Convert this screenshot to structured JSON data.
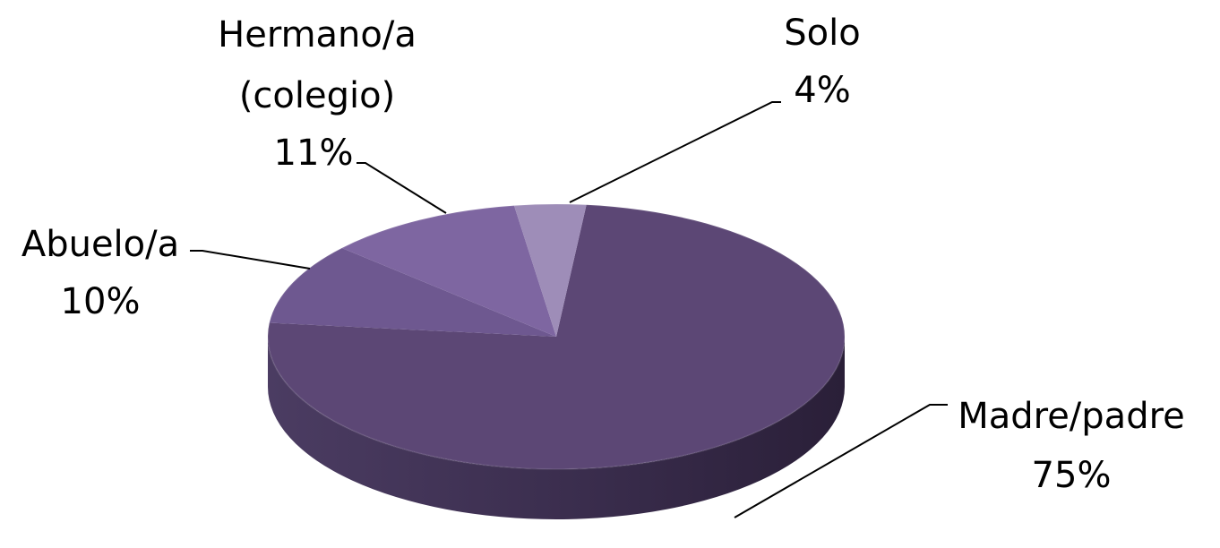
{
  "chart_data": {
    "type": "pie",
    "style": "3d",
    "title": "",
    "slices": [
      {
        "name": "Madre/padre",
        "value": 75,
        "label": "75%",
        "color": "#5c4775"
      },
      {
        "name": "Abuelo/a",
        "value": 10,
        "label": "10%",
        "color": "#6e5890"
      },
      {
        "name": "Hermano/a (colegio)",
        "value": 11,
        "label": "11%",
        "color": "#7e66a1"
      },
      {
        "name": "Solo",
        "value": 4,
        "label": "4%",
        "color": "#9e8db8"
      }
    ],
    "label_text": {
      "madre_name": "Madre/padre",
      "madre_pct": "75%",
      "abuelo_name": "Abuelo/a",
      "abuelo_pct": "10%",
      "hermano_name_1": "Hermano/a",
      "hermano_name_2": "(colegio)",
      "hermano_pct": "11%",
      "solo_name": "Solo",
      "solo_pct": "4%"
    },
    "side_colors": {
      "dark": "#2a1f38",
      "light": "#4b3c62"
    }
  }
}
